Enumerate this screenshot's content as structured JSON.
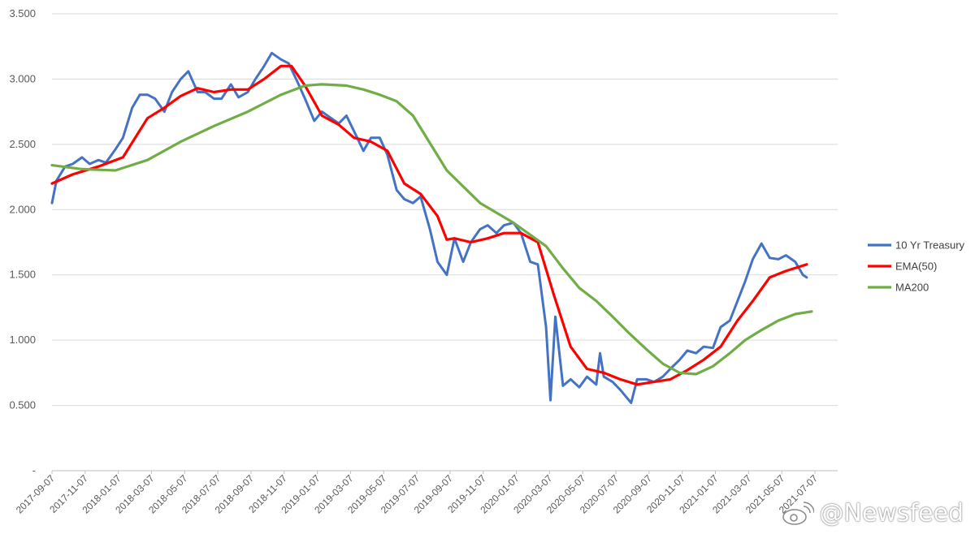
{
  "chart_data": {
    "type": "line",
    "title": "",
    "xlabel": "",
    "ylabel": "",
    "ylim": [
      0,
      3.5
    ],
    "y_ticks": [
      "-",
      "0.500",
      "1.000",
      "1.500",
      "2.000",
      "2.500",
      "3.000",
      "3.500"
    ],
    "x_ticks": [
      "2017-09-07",
      "2017-11-07",
      "2018-01-07",
      "2018-03-07",
      "2018-05-07",
      "2018-07-07",
      "2018-09-07",
      "2018-11-07",
      "2019-01-07",
      "2019-03-07",
      "2019-05-07",
      "2019-07-07",
      "2019-09-07",
      "2019-11-07",
      "2020-01-07",
      "2020-03-07",
      "2020-05-07",
      "2020-07-07",
      "2020-09-07",
      "2020-11-07",
      "2021-01-07",
      "2021-03-07",
      "2021-05-07",
      "2021-07-07"
    ],
    "grid": true,
    "legend_position": "right",
    "series": [
      {
        "name": "10 Yr Treasury",
        "color": "#4472C4",
        "x": [
          "2017-09-07",
          "2017-09-15",
          "2017-10-01",
          "2017-10-15",
          "2017-11-01",
          "2017-11-15",
          "2017-12-01",
          "2017-12-15",
          "2018-01-01",
          "2018-01-15",
          "2018-02-01",
          "2018-02-15",
          "2018-03-01",
          "2018-03-15",
          "2018-04-01",
          "2018-04-15",
          "2018-05-01",
          "2018-05-15",
          "2018-06-01",
          "2018-06-15",
          "2018-07-01",
          "2018-07-15",
          "2018-08-01",
          "2018-08-15",
          "2018-09-01",
          "2018-09-15",
          "2018-10-01",
          "2018-10-15",
          "2018-11-01",
          "2018-11-15",
          "2018-12-01",
          "2018-12-15",
          "2019-01-01",
          "2019-01-15",
          "2019-02-01",
          "2019-02-15",
          "2019-03-01",
          "2019-03-15",
          "2019-04-01",
          "2019-04-15",
          "2019-05-01",
          "2019-05-15",
          "2019-06-01",
          "2019-06-15",
          "2019-07-01",
          "2019-07-15",
          "2019-08-01",
          "2019-08-15",
          "2019-09-01",
          "2019-09-15",
          "2019-10-01",
          "2019-10-15",
          "2019-11-01",
          "2019-11-15",
          "2019-12-01",
          "2019-12-15",
          "2020-01-01",
          "2020-01-15",
          "2020-02-01",
          "2020-02-15",
          "2020-03-01",
          "2020-03-09",
          "2020-03-18",
          "2020-04-01",
          "2020-04-15",
          "2020-05-01",
          "2020-05-15",
          "2020-06-01",
          "2020-06-08",
          "2020-06-15",
          "2020-07-01",
          "2020-07-15",
          "2020-08-04",
          "2020-08-15",
          "2020-09-01",
          "2020-09-15",
          "2020-10-01",
          "2020-10-15",
          "2020-11-01",
          "2020-11-15",
          "2020-12-01",
          "2020-12-15",
          "2021-01-01",
          "2021-01-15",
          "2021-02-01",
          "2021-02-15",
          "2021-03-01",
          "2021-03-15",
          "2021-03-31",
          "2021-04-15",
          "2021-05-01",
          "2021-05-15",
          "2021-06-01",
          "2021-06-15",
          "2021-06-22"
        ],
        "values": [
          2.05,
          2.22,
          2.33,
          2.35,
          2.4,
          2.35,
          2.38,
          2.36,
          2.46,
          2.55,
          2.78,
          2.88,
          2.88,
          2.85,
          2.75,
          2.9,
          3.0,
          3.06,
          2.9,
          2.9,
          2.85,
          2.85,
          2.96,
          2.86,
          2.9,
          3.0,
          3.1,
          3.2,
          3.15,
          3.12,
          2.98,
          2.85,
          2.68,
          2.75,
          2.7,
          2.66,
          2.72,
          2.6,
          2.45,
          2.55,
          2.55,
          2.42,
          2.15,
          2.08,
          2.05,
          2.1,
          1.85,
          1.6,
          1.5,
          1.78,
          1.6,
          1.75,
          1.85,
          1.88,
          1.82,
          1.88,
          1.9,
          1.82,
          1.6,
          1.58,
          1.1,
          0.54,
          1.18,
          0.65,
          0.7,
          0.64,
          0.72,
          0.66,
          0.9,
          0.72,
          0.68,
          0.62,
          0.52,
          0.7,
          0.7,
          0.68,
          0.72,
          0.78,
          0.85,
          0.92,
          0.9,
          0.95,
          0.94,
          1.1,
          1.15,
          1.3,
          1.45,
          1.62,
          1.74,
          1.63,
          1.62,
          1.65,
          1.6,
          1.5,
          1.48
        ]
      },
      {
        "name": "EMA(50)",
        "color": "#FF0000",
        "x": [
          "2017-09-07",
          "2017-10-15",
          "2017-12-01",
          "2018-01-15",
          "2018-03-01",
          "2018-04-01",
          "2018-05-01",
          "2018-06-01",
          "2018-07-01",
          "2018-08-01",
          "2018-09-01",
          "2018-10-01",
          "2018-11-01",
          "2018-11-20",
          "2018-12-15",
          "2019-01-15",
          "2019-02-15",
          "2019-03-15",
          "2019-04-15",
          "2019-05-15",
          "2019-06-15",
          "2019-07-15",
          "2019-08-15",
          "2019-09-01",
          "2019-09-15",
          "2019-10-15",
          "2019-11-15",
          "2019-12-15",
          "2020-01-15",
          "2020-02-15",
          "2020-03-15",
          "2020-04-15",
          "2020-05-15",
          "2020-06-15",
          "2020-07-15",
          "2020-08-15",
          "2020-09-15",
          "2020-10-15",
          "2020-11-15",
          "2020-12-15",
          "2021-01-15",
          "2021-02-15",
          "2021-03-15",
          "2021-04-15",
          "2021-05-15",
          "2021-06-22"
        ],
        "values": [
          2.2,
          2.27,
          2.33,
          2.4,
          2.7,
          2.78,
          2.87,
          2.93,
          2.9,
          2.92,
          2.92,
          3.0,
          3.1,
          3.1,
          2.95,
          2.72,
          2.65,
          2.55,
          2.52,
          2.45,
          2.2,
          2.12,
          1.95,
          1.77,
          1.78,
          1.75,
          1.78,
          1.82,
          1.82,
          1.75,
          1.35,
          0.95,
          0.78,
          0.75,
          0.7,
          0.66,
          0.68,
          0.7,
          0.77,
          0.85,
          0.95,
          1.15,
          1.3,
          1.48,
          1.53,
          1.58
        ]
      },
      {
        "name": "MA200",
        "color": "#70AD47",
        "x": [
          "2017-09-07",
          "2017-11-01",
          "2018-01-01",
          "2018-03-01",
          "2018-05-01",
          "2018-07-01",
          "2018-09-01",
          "2018-11-01",
          "2018-12-15",
          "2019-01-15",
          "2019-03-01",
          "2019-04-01",
          "2019-05-01",
          "2019-06-01",
          "2019-07-01",
          "2019-09-01",
          "2019-11-01",
          "2020-01-01",
          "2020-03-01",
          "2020-04-01",
          "2020-05-01",
          "2020-06-01",
          "2020-07-01",
          "2020-08-01",
          "2020-09-01",
          "2020-10-01",
          "2020-11-01",
          "2020-12-01",
          "2021-01-01",
          "2021-02-01",
          "2021-03-01",
          "2021-04-01",
          "2021-05-01",
          "2021-06-01",
          "2021-07-01"
        ],
        "values": [
          2.34,
          2.31,
          2.3,
          2.38,
          2.52,
          2.64,
          2.75,
          2.88,
          2.95,
          2.96,
          2.95,
          2.92,
          2.88,
          2.83,
          2.72,
          2.3,
          2.05,
          1.9,
          1.72,
          1.55,
          1.4,
          1.3,
          1.18,
          1.05,
          0.93,
          0.82,
          0.75,
          0.74,
          0.8,
          0.9,
          1.0,
          1.08,
          1.15,
          1.2,
          1.22
        ]
      }
    ]
  },
  "watermark": {
    "text": "@Newsfeed",
    "icon": "weibo-logo-icon"
  }
}
